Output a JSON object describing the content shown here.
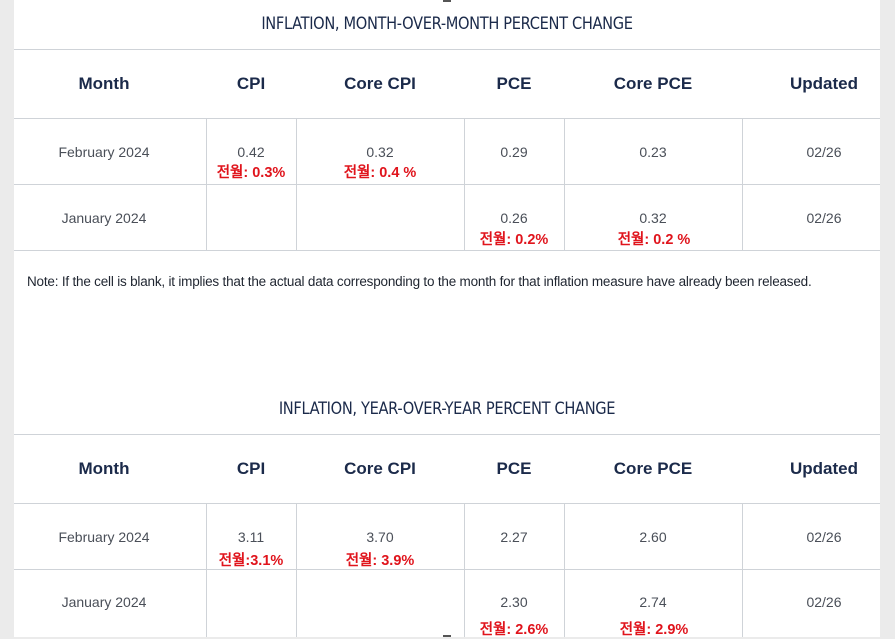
{
  "mom": {
    "title": "INFLATION, MONTH-OVER-MONTH PERCENT CHANGE",
    "headers": [
      "Month",
      "CPI",
      "Core CPI",
      "PCE",
      "Core PCE",
      "Updated"
    ],
    "rows": [
      {
        "month": "February 2024",
        "cpi": "0.42",
        "core_cpi": "0.32",
        "pce": "0.29",
        "core_pce": "0.23",
        "updated": "02/26"
      },
      {
        "month": "January 2024",
        "cpi": "",
        "core_cpi": "",
        "pce": "0.26",
        "core_pce": "0.32",
        "updated": "02/26"
      }
    ],
    "annotations": {
      "feb_cpi": "전월: 0.3%",
      "feb_core_cpi": "전월: 0.4 %",
      "jan_pce": "전월: 0.2%",
      "jan_core_pce": "전월: 0.2 %"
    }
  },
  "note": "Note: If the cell is blank, it implies that the actual data corresponding to the month for that inflation measure have already been released.",
  "yoy": {
    "title": "INFLATION, YEAR-OVER-YEAR PERCENT CHANGE",
    "headers": [
      "Month",
      "CPI",
      "Core CPI",
      "PCE",
      "Core PCE",
      "Updated"
    ],
    "rows": [
      {
        "month": "February 2024",
        "cpi": "3.11",
        "core_cpi": "3.70",
        "pce": "2.27",
        "core_pce": "2.60",
        "updated": "02/26"
      },
      {
        "month": "January 2024",
        "cpi": "",
        "core_cpi": "",
        "pce": "2.30",
        "core_pce": "2.74",
        "updated": "02/26"
      }
    ],
    "annotations": {
      "feb_cpi": "전월:3.1%",
      "feb_core_cpi": "전월: 3.9%",
      "jan_pce": "전월: 2.6%",
      "jan_core_pce": "전월: 2.9%"
    }
  },
  "colors": {
    "header_text": "#1b2a4a",
    "annotation_text": "#e0141c",
    "background": "#ebebeb"
  }
}
